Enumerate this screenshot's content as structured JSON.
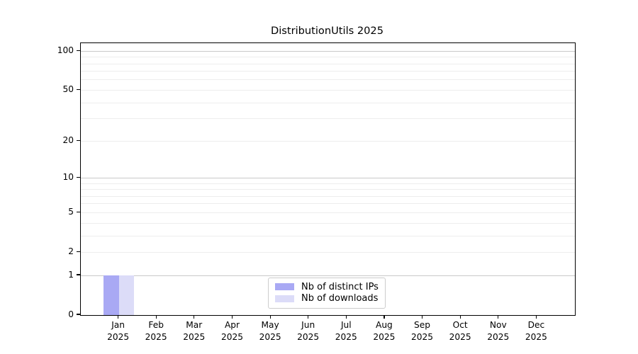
{
  "chart_data": {
    "type": "bar",
    "title": "DistributionUtils 2025",
    "x_categories": [
      "Jan",
      "Feb",
      "Mar",
      "Apr",
      "May",
      "Jun",
      "Jul",
      "Aug",
      "Sep",
      "Oct",
      "Nov",
      "Dec"
    ],
    "x_year_label": "2025",
    "series": [
      {
        "name": "Nb of distinct IPs",
        "color": "#a9a9f4",
        "values": [
          1,
          0,
          0,
          0,
          0,
          0,
          0,
          0,
          0,
          0,
          0,
          0
        ]
      },
      {
        "name": "Nb of downloads",
        "color": "#dcdcf8",
        "values": [
          1,
          0,
          0,
          0,
          0,
          0,
          0,
          0,
          0,
          0,
          0,
          0
        ]
      }
    ],
    "y_scale": "log1p",
    "ylim": [
      0,
      115
    ],
    "y_tick_labels": [
      0,
      1,
      2,
      5,
      10,
      20,
      50,
      100
    ],
    "y_major_gridlines": [
      1,
      10,
      100
    ],
    "y_minor_gridlines": [
      2,
      3,
      4,
      5,
      6,
      7,
      8,
      9,
      20,
      30,
      40,
      50,
      60,
      70,
      80,
      90
    ],
    "grid": "horizontal",
    "legend_position": "lower-center",
    "colors": {
      "major_grid": "#c9c9c9",
      "minor_grid": "#ededed",
      "spine": "#000000",
      "background": "#ffffff"
    }
  }
}
